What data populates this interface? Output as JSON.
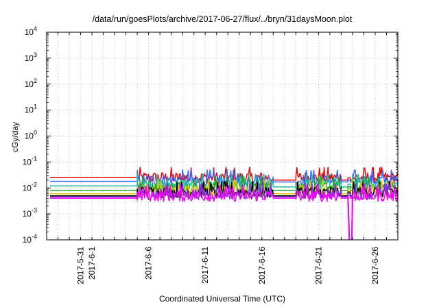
{
  "chart_data": {
    "type": "line",
    "title": "/data/run/goesPlots/archive/2017-06-27/flux/../bryn/31daysMoon.plot",
    "xlabel": "Coordinated Universal Time (UTC)",
    "ylabel": "cGy/day",
    "yscale": "log",
    "ylim": [
      0.0001,
      10000
    ],
    "xlim": [
      "2017-05-28",
      "2017-06-28"
    ],
    "grid": true,
    "y_ticks": [
      {
        "base": "10",
        "exp": "-4"
      },
      {
        "base": "10",
        "exp": "-3"
      },
      {
        "base": "10",
        "exp": "-2"
      },
      {
        "base": "10",
        "exp": "-1"
      },
      {
        "base": "10",
        "exp": "0"
      },
      {
        "base": "10",
        "exp": "1"
      },
      {
        "base": "10",
        "exp": "2"
      },
      {
        "base": "10",
        "exp": "3"
      },
      {
        "base": "10",
        "exp": "4"
      }
    ],
    "x_ticks": [
      {
        "date": "2017-05-31",
        "label": "2017-5-31"
      },
      {
        "date": "2017-06-01",
        "label": "2017-6-1"
      },
      {
        "date": "2017-06-06",
        "label": "2017-6-6"
      },
      {
        "date": "2017-06-11",
        "label": "2017-6-11"
      },
      {
        "date": "2017-06-16",
        "label": "2017-6-16"
      },
      {
        "date": "2017-06-21",
        "label": "2017-6-21"
      },
      {
        "date": "2017-06-26",
        "label": "2017-6-26"
      }
    ],
    "segments": [
      {
        "start": "2017-06-05",
        "end": "2017-06-17",
        "noisy": true
      },
      {
        "start": "2017-06-19",
        "end": "2017-06-23",
        "noisy": true
      },
      {
        "start": "2017-06-23.6",
        "end": "2017-06-23.8",
        "noisy": false
      },
      {
        "start": "2017-06-24",
        "end": "2017-06-28",
        "noisy": true
      }
    ],
    "series": [
      {
        "color": "#ee0000",
        "base": 0.025,
        "pre": 0.025,
        "gap": 0.02
      },
      {
        "color": "#3366ff",
        "base": 0.02,
        "pre": 0.018,
        "gap": 0.017
      },
      {
        "color": "#22bbaa",
        "base": 0.014,
        "pre": 0.012,
        "gap": 0.011
      },
      {
        "color": "#22aa22",
        "base": 0.011,
        "pre": 0.008,
        "gap": 0.008
      },
      {
        "color": "#ddcc00",
        "base": 0.008,
        "pre": 0.006,
        "gap": 0.006
      },
      {
        "color": "#000000",
        "base": 0.007,
        "pre": 0.005,
        "gap": 0.005
      },
      {
        "color": "#8a2be2",
        "base": 0.006,
        "pre": 0.0045,
        "gap": 0.0045
      },
      {
        "color": "#ff00ff",
        "base": 0.005,
        "pre": 0.004,
        "gap": 0.004
      }
    ],
    "dropout": {
      "start": "2017-06-23.6",
      "end": "2017-06-24",
      "value": 0.0001
    }
  }
}
